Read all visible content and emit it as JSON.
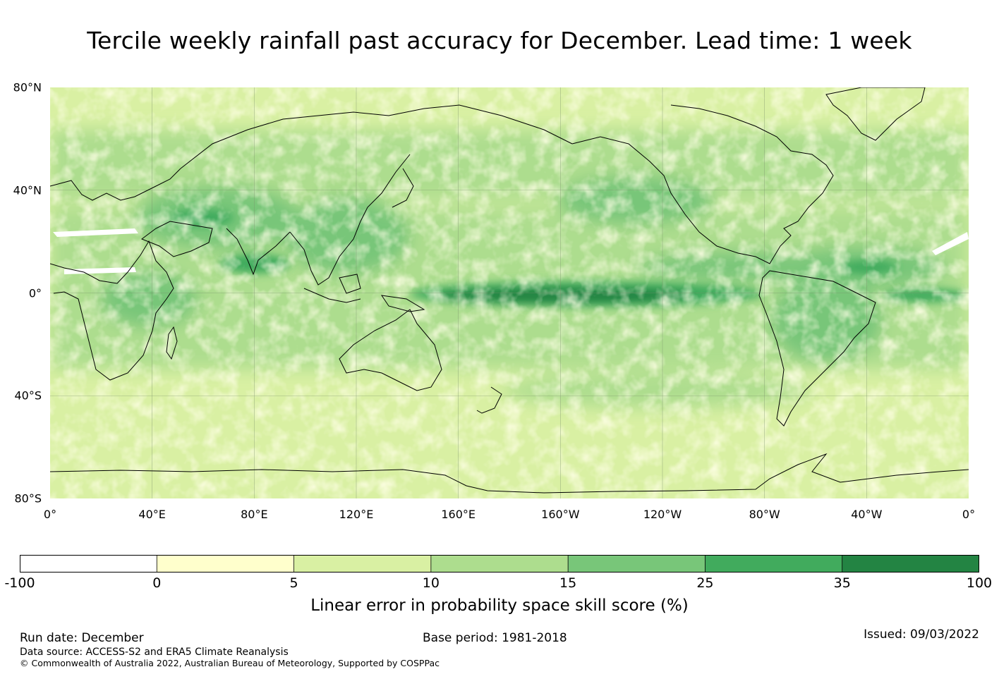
{
  "title": "Tercile weekly rainfall past accuracy for December. Lead time: 1 week",
  "map": {
    "lat_labels": [
      "80°N",
      "40°N",
      "0°",
      "40°S",
      "80°S"
    ],
    "lon_labels": [
      "0°",
      "40°E",
      "80°E",
      "120°E",
      "160°E",
      "160°W",
      "120°W",
      "80°W",
      "40°W",
      "0°"
    ],
    "colors": {
      "land_outline": "#000000",
      "grid": "#7a8f6a",
      "bin_neg": "#ffffff",
      "bin_0_5": "#ffffcc",
      "bin_5_10": "#d9f0a3",
      "bin_10_15": "#addd8e",
      "bin_15_25": "#78c679",
      "bin_25_35": "#41ab5d",
      "bin_35_100": "#238443"
    }
  },
  "colorbar": {
    "tick_labels": [
      "-100",
      "0",
      "5",
      "10",
      "15",
      "25",
      "35",
      "100"
    ],
    "label": "Linear error in probability space skill score (%)",
    "colors": [
      "#ffffff",
      "#ffffcc",
      "#d9f0a3",
      "#addd8e",
      "#78c679",
      "#41ab5d",
      "#238443"
    ]
  },
  "footer": {
    "run_date": "Run date: December",
    "base_period": "Base period: 1981-2018",
    "issued": "Issued: 09/03/2022",
    "data_source": "Data source: ACCESS-S2 and ERA5 Climate Reanalysis",
    "copyright": "© Commonwealth of Australia 2022, Australian Bureau of Meteorology, Supported by COSPPac"
  }
}
